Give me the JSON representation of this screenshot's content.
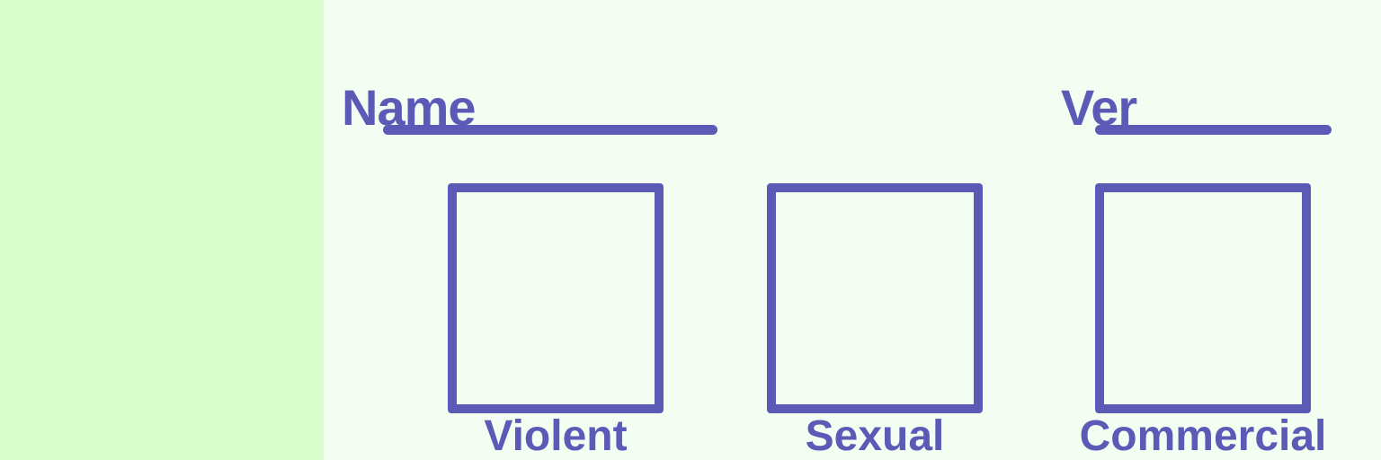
{
  "colors": {
    "left_panel": "#d8fdcc",
    "canvas": "#f4fdf2",
    "accent": "#5b5bb7"
  },
  "form": {
    "name_label": "Name",
    "name_value": "",
    "version_label": "Ver",
    "version_value": ""
  },
  "checkboxes": [
    {
      "label": "Violent",
      "checked": false
    },
    {
      "label": "Sexual",
      "checked": false
    },
    {
      "label": "Commercial",
      "checked": false
    }
  ]
}
